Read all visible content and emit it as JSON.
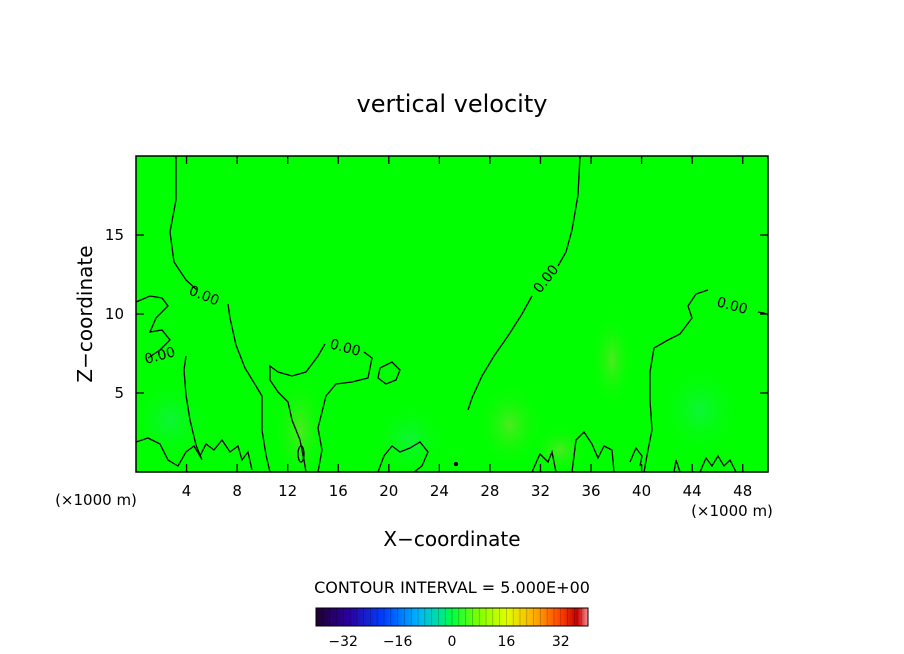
{
  "chart_data": {
    "type": "heatmap",
    "title": "vertical velocity",
    "xlabel": "X−coordinate",
    "ylabel": "Z−coordinate",
    "x_unit_left": "(×1000 m)",
    "x_unit_right": "(×1000 m)",
    "xlim": [
      0,
      50
    ],
    "ylim": [
      0,
      20
    ],
    "x_ticks": [
      4,
      8,
      12,
      16,
      20,
      24,
      28,
      32,
      36,
      40,
      44,
      48
    ],
    "x_tick_labels": [
      "4",
      "8",
      "12",
      "16",
      "20",
      "24",
      "28",
      "32",
      "36",
      "40",
      "44",
      "48"
    ],
    "y_ticks": [
      5,
      10,
      15
    ],
    "y_tick_labels": [
      "5",
      "10",
      "15"
    ],
    "field_description": "near-zero vertical velocity; weak updrafts below z=8",
    "contour_label": "0.00",
    "contour_interval_text": "CONTOUR INTERVAL = 5.000E+00",
    "colorbar": {
      "range": [
        -40,
        40
      ],
      "ticks": [
        -32,
        -16,
        0,
        16,
        32
      ],
      "tick_labels": [
        "−32",
        "−16",
        "0",
        "16",
        "32"
      ]
    },
    "field_color": "#00ff00",
    "updraft_color": "#77dd33"
  }
}
